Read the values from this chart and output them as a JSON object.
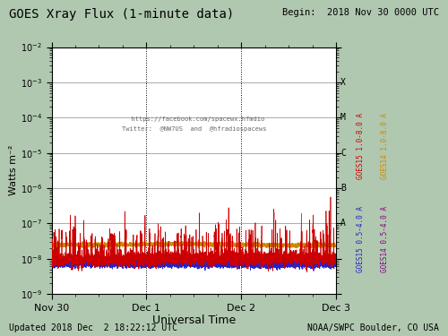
{
  "title": "GOES Xray Flux (1-minute data)",
  "begin_label": "Begin:  2018 Nov 30 0000 UTC",
  "xlabel": "Universal Time",
  "ylabel": "Watts m⁻²",
  "updated_label": "Updated 2018 Dec  2 18:22:12 UTC",
  "credit_label": "NOAA/SWPC Boulder, CO USA",
  "watermark_line1": "  https://facebook.com/spacewx.hfmdio",
  "watermark_line2": "Twitter:  @NW7US  and  @hfradiospacews",
  "xtick_labels": [
    "Nov 30",
    "Dec 1",
    "Dec 2",
    "Dec 3"
  ],
  "ylim_log": [
    -9,
    -2
  ],
  "flare_levels": {
    "A": -7,
    "B": -6,
    "C": -5,
    "M": -4,
    "X": -3
  },
  "fig_bg_color": "#b0c8b0",
  "plot_bg_color": "#ffffff",
  "goes15_1_8_color": "#cc0000",
  "goes14_1_8_color": "#cc8800",
  "goes15_0_5_color": "#2222cc",
  "goes14_0_5_color": "#880088",
  "legend_goes15_1_8": "GOES15 1.0-8.0 A",
  "legend_goes14_1_8": "GOES14 1.0-8.0 A",
  "legend_goes15_0_5": "GOES15 0.5-4.0 A",
  "legend_goes14_0_5": "GOES14 0.5-4.0 A",
  "n_points": 4320,
  "duration_days": 3,
  "seed": 42
}
